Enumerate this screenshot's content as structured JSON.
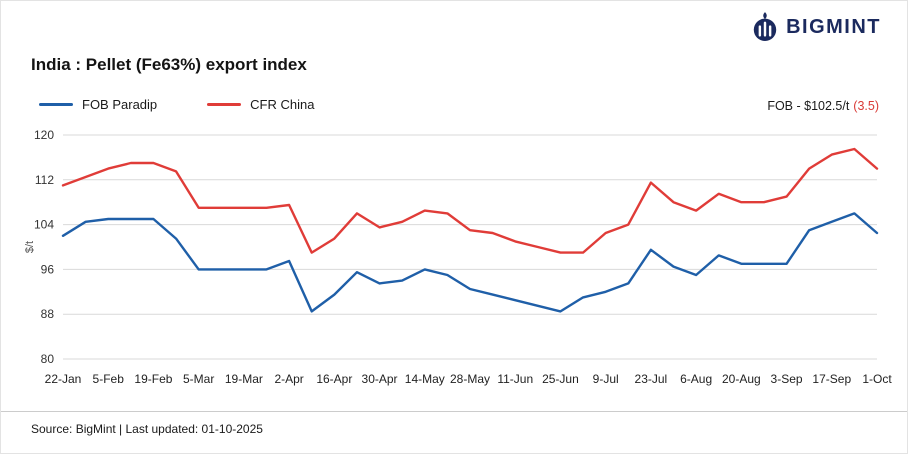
{
  "brand": {
    "name": "BIGMINT",
    "color": "#1b2a5e"
  },
  "annotation": {
    "text": "FOB - $102.5/t",
    "change": "(3.5)",
    "change_color": "#d93a36"
  },
  "footer": {
    "text": "Source: BigMint | Last updated: 01-10-2025"
  },
  "chart_data": {
    "type": "line",
    "title": "India : Pellet (Fe63%) export index",
    "xlabel": "",
    "ylabel": "$/t",
    "ylim": [
      80,
      120
    ],
    "yticks": [
      80,
      88,
      96,
      104,
      112,
      120
    ],
    "xtick_every": 2,
    "grid": "horizontal",
    "legend_position": "top-left",
    "x": [
      "22-Jan",
      "29-Jan",
      "5-Feb",
      "12-Feb",
      "19-Feb",
      "26-Feb",
      "5-Mar",
      "12-Mar",
      "19-Mar",
      "26-Mar",
      "2-Apr",
      "9-Apr",
      "16-Apr",
      "23-Apr",
      "30-Apr",
      "7-May",
      "14-May",
      "21-May",
      "28-May",
      "4-Jun",
      "11-Jun",
      "18-Jun",
      "25-Jun",
      "2-Jul",
      "9-Jul",
      "16-Jul",
      "23-Jul",
      "30-Jul",
      "6-Aug",
      "13-Aug",
      "20-Aug",
      "27-Aug",
      "3-Sep",
      "10-Sep",
      "17-Sep",
      "24-Sep",
      "1-Oct"
    ],
    "series": [
      {
        "name": "FOB Paradip",
        "color": "#1f5fa8",
        "values": [
          102,
          104.5,
          105,
          105,
          105,
          101.5,
          96,
          96,
          96,
          96,
          97.5,
          88.5,
          91.5,
          95.5,
          93.5,
          94,
          96,
          95,
          92.5,
          91.5,
          90.5,
          89.5,
          88.5,
          91,
          92,
          93.5,
          99.5,
          96.5,
          95,
          98.5,
          97,
          97,
          97,
          103,
          104.5,
          106,
          102.5
        ]
      },
      {
        "name": "CFR China",
        "color": "#e03c38",
        "values": [
          111,
          112.5,
          114,
          115,
          115,
          113.5,
          107,
          107,
          107,
          107,
          107.5,
          99,
          101.5,
          106,
          103.5,
          104.5,
          106.5,
          106,
          103,
          102.5,
          101,
          100,
          99,
          99,
          102.5,
          104,
          111.5,
          108,
          106.5,
          109.5,
          108,
          108,
          109,
          114,
          116.5,
          117.5,
          114
        ]
      }
    ]
  }
}
